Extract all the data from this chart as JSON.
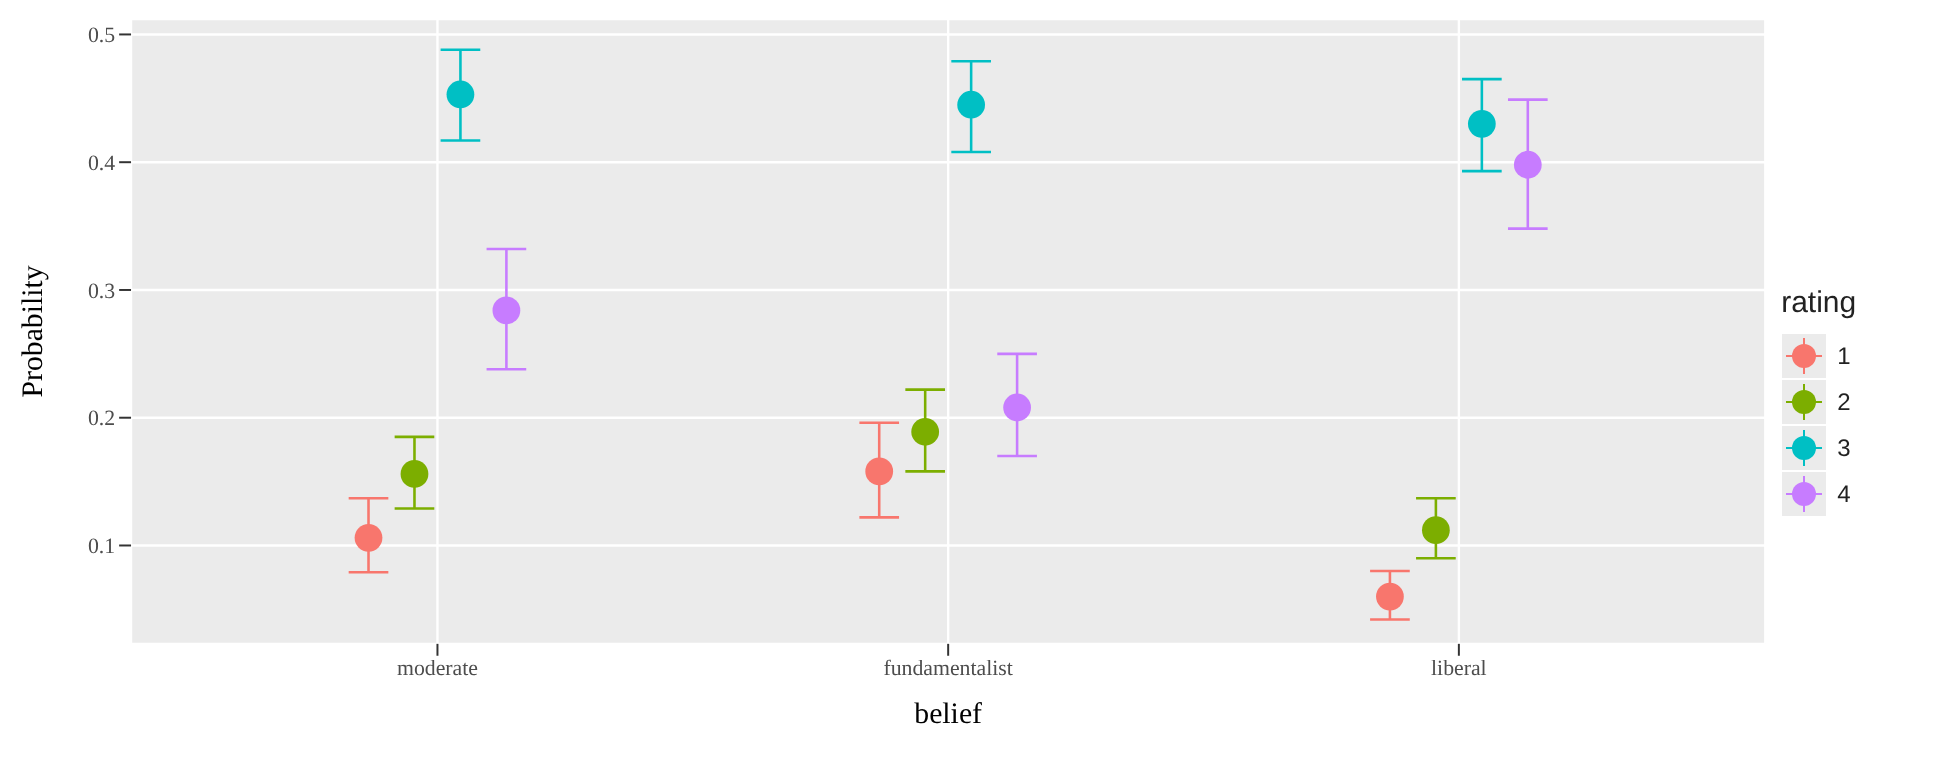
{
  "chart_data": {
    "type": "scatter",
    "xlabel": "belief",
    "ylabel": "Probability",
    "legend_title": "rating",
    "categories": [
      "moderate",
      "fundamentalist",
      "liberal"
    ],
    "series": [
      {
        "name": "1",
        "color": "#f8766d",
        "values": [
          0.106,
          0.158,
          0.06
        ],
        "errors": [
          [
            0.079,
            0.137
          ],
          [
            0.122,
            0.196
          ],
          [
            0.042,
            0.08
          ]
        ]
      },
      {
        "name": "2",
        "color": "#7cae00",
        "values": [
          0.156,
          0.189,
          0.112
        ],
        "errors": [
          [
            0.129,
            0.185
          ],
          [
            0.158,
            0.222
          ],
          [
            0.09,
            0.137
          ]
        ]
      },
      {
        "name": "3",
        "color": "#00bfc4",
        "values": [
          0.453,
          0.445,
          0.43
        ],
        "errors": [
          [
            0.417,
            0.488
          ],
          [
            0.408,
            0.479
          ],
          [
            0.393,
            0.465
          ]
        ]
      },
      {
        "name": "4",
        "color": "#c77cff",
        "values": [
          0.284,
          0.208,
          0.398
        ],
        "errors": [
          [
            0.238,
            0.332
          ],
          [
            0.17,
            0.25
          ],
          [
            0.348,
            0.449
          ]
        ]
      }
    ],
    "ylim": [
      0.023,
      0.512
    ],
    "yticks": [
      0.1,
      0.2,
      0.3,
      0.4,
      0.5
    ],
    "grid": true,
    "legend": "right",
    "marker": "circle"
  }
}
